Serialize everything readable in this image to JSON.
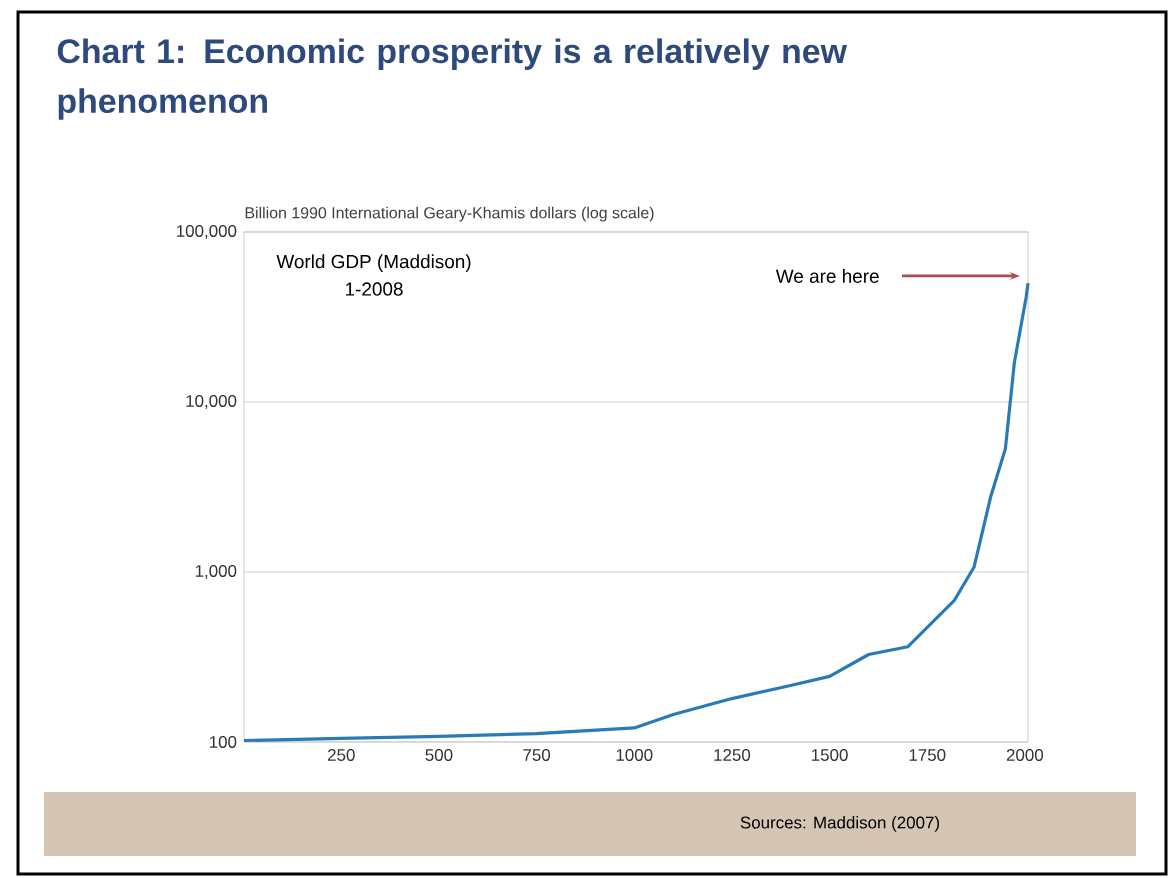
{
  "chart_data": {
    "type": "line",
    "title": "Chart 1: Economic prosperity is a relatively new phenomenon",
    "ylabel": "Billion 1990 International Geary-Khamis dollars (log scale)",
    "annotations": [
      "World GDP (Maddison)",
      "1-2008",
      "We are here",
      "Sources: Maddison (2007)"
    ],
    "x": [
      1,
      250,
      500,
      750,
      1000,
      1100,
      1250,
      1400,
      1500,
      1600,
      1700,
      1820,
      1870,
      1913,
      1950,
      1973,
      2003,
      2008
    ],
    "series": [
      {
        "color": "#2a7ab8",
        "values": [
          102,
          105,
          108,
          112,
          121,
          145,
          180,
          215,
          243,
          327,
          363,
          684,
          1070,
          2800,
          5300,
          17000,
          41000,
          50000
        ]
      }
    ],
    "xlim": [
      1,
      2008
    ],
    "xticks": [
      250,
      500,
      750,
      1000,
      1250,
      1500,
      1750,
      2000
    ],
    "ylim": [
      100,
      100000
    ],
    "yticks": [
      {
        "value": 100,
        "label": "100"
      },
      {
        "value": 1000,
        "label": "1,000"
      },
      {
        "value": 10000,
        "label": "10,000"
      },
      {
        "value": 100000,
        "label": "100,000"
      }
    ],
    "log": true,
    "grid": "y",
    "marker": "none",
    "line_style": "solid"
  }
}
